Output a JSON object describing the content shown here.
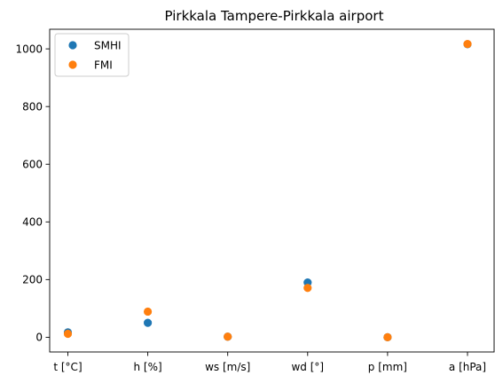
{
  "chart_data": {
    "type": "scatter",
    "title": "Pirkkala Tampere-Pirkkala airport",
    "xlabel": "",
    "ylabel": "",
    "categories": [
      "t [°C]",
      "h [%]",
      "ws [m/s]",
      "wd [°]",
      "p [mm]",
      "a [hPa]"
    ],
    "y_ticks": [
      0,
      200,
      400,
      600,
      800,
      1000
    ],
    "ylim": [
      -51,
      1068
    ],
    "grid": false,
    "legend": "top-left",
    "series": [
      {
        "name": "SMHI",
        "color": "#1f77b4",
        "values": [
          17,
          50,
          2,
          190,
          0,
          1016
        ]
      },
      {
        "name": "FMI",
        "color": "#ff7f0e",
        "values": [
          12,
          89,
          2,
          171,
          0,
          1017
        ]
      }
    ]
  }
}
